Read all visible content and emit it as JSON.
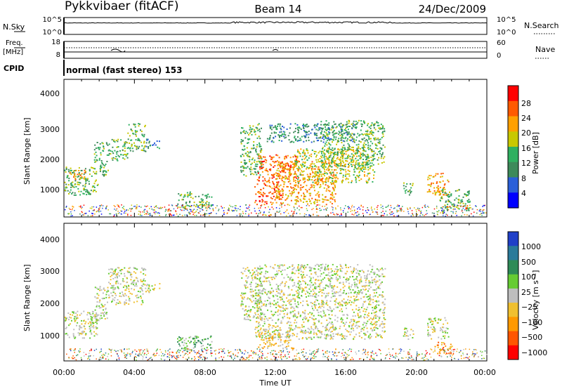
{
  "header": {
    "title": "Pykkvibaer (fitACF)",
    "beam": "Beam 14",
    "date": "24/Dec/2009"
  },
  "strip": {
    "nsky_label": "N.Sky",
    "nsearch_label": "N.Search",
    "nsky_ticks": [
      "10^5",
      "10^0"
    ],
    "nsearch_ticks": [
      "10^5",
      "10^0"
    ],
    "freq_label": "Freq.",
    "freq_unit": "[MHz]",
    "freq_ticks": [
      "18",
      "8"
    ],
    "nave_label": "Nave",
    "nave_ticks": [
      "60",
      "0"
    ],
    "cpid_label": "CPID",
    "cpid_text": "normal (fast stereo) 153"
  },
  "chart_data": [
    {
      "type": "heatmap",
      "name": "power",
      "ylabel": "Slant Range [km]",
      "yticks": [
        "4000",
        "3000",
        "2000",
        "1000"
      ],
      "ylim": [
        180,
        4600
      ],
      "colorbar_label": "Power [dB]",
      "colorbar_ticks": [
        "28",
        "24",
        "20",
        "16",
        "12",
        "8",
        "4"
      ],
      "colors": [
        "#0000ff",
        "#2a5fd8",
        "#3d8a5a",
        "#2fb060",
        "#c8c800",
        "#ffa000",
        "#ff5a00",
        "#ff0000"
      ],
      "blobs": [
        {
          "t0": 0.0,
          "t1": 1.9,
          "r0": 900,
          "r1": 1800,
          "level": 3
        },
        {
          "t0": 0.3,
          "t1": 1.2,
          "r0": 1400,
          "r1": 1700,
          "level": 5
        },
        {
          "t0": 1.7,
          "t1": 2.5,
          "r0": 1500,
          "r1": 2600,
          "level": 3
        },
        {
          "t0": 2.5,
          "t1": 3.6,
          "r0": 2000,
          "r1": 2700,
          "level": 3
        },
        {
          "t0": 3.6,
          "t1": 4.6,
          "r0": 2300,
          "r1": 3200,
          "level": 3
        },
        {
          "t0": 4.6,
          "t1": 5.4,
          "r0": 2400,
          "r1": 2700,
          "level": 2
        },
        {
          "t0": 6.4,
          "t1": 8.4,
          "r0": 500,
          "r1": 1000,
          "level": 3
        },
        {
          "t0": 10.0,
          "t1": 11.2,
          "r0": 1500,
          "r1": 3200,
          "level": 3
        },
        {
          "t0": 10.8,
          "t1": 12.4,
          "r0": 600,
          "r1": 1400,
          "level": 6
        },
        {
          "t0": 11.0,
          "t1": 13.2,
          "r0": 1400,
          "r1": 2200,
          "level": 6
        },
        {
          "t0": 12.0,
          "t1": 15.4,
          "r0": 600,
          "r1": 2000,
          "level": 5
        },
        {
          "t0": 13.0,
          "t1": 17.6,
          "r0": 1300,
          "r1": 2400,
          "level": 4
        },
        {
          "t0": 14.5,
          "t1": 18.2,
          "r0": 1800,
          "r1": 3300,
          "level": 3
        },
        {
          "t0": 11.5,
          "t1": 16.5,
          "r0": 2600,
          "r1": 3200,
          "level": 2
        },
        {
          "t0": 19.2,
          "t1": 19.8,
          "r0": 900,
          "r1": 1300,
          "level": 3
        },
        {
          "t0": 20.6,
          "t1": 21.8,
          "r0": 900,
          "r1": 1600,
          "level": 5
        },
        {
          "t0": 21.3,
          "t1": 23.0,
          "r0": 400,
          "r1": 1100,
          "level": 3
        }
      ]
    },
    {
      "type": "heatmap",
      "name": "velocity",
      "ylabel": "Slant Range [km]",
      "yticks": [
        "4000",
        "3000",
        "2000",
        "1000"
      ],
      "ylim": [
        180,
        4600
      ],
      "xlabel": "Time UT",
      "xticks": [
        "00:00",
        "04:00",
        "08:00",
        "12:00",
        "16:00",
        "20:00",
        "00:00"
      ],
      "xlim": [
        0,
        24
      ],
      "colorbar_label": "Velocity [m s⁻¹]",
      "colorbar_ticks": [
        "1000",
        "500",
        "100",
        "25",
        "−25",
        "−100",
        "−500",
        "−1000"
      ],
      "colors": [
        "#2040c8",
        "#2a7a9a",
        "#2e8b57",
        "#66cc33",
        "#bebebe",
        "#f0c030",
        "#ff9900",
        "#ff5500",
        "#ff0000"
      ],
      "blobs": [
        {
          "t0": 0.0,
          "t1": 1.9,
          "r0": 900,
          "r1": 1800,
          "level": 4
        },
        {
          "t0": 1.7,
          "t1": 2.5,
          "r0": 1500,
          "r1": 2600,
          "level": 4
        },
        {
          "t0": 2.5,
          "t1": 4.6,
          "r0": 2000,
          "r1": 3200,
          "level": 4
        },
        {
          "t0": 4.6,
          "t1": 5.4,
          "r0": 2400,
          "r1": 2700,
          "level": 4
        },
        {
          "t0": 6.4,
          "t1": 8.4,
          "r0": 500,
          "r1": 1000,
          "level": 3
        },
        {
          "t0": 10.0,
          "t1": 11.2,
          "r0": 1500,
          "r1": 3200,
          "level": 4
        },
        {
          "t0": 10.8,
          "t1": 18.2,
          "r0": 900,
          "r1": 3300,
          "level": 4
        },
        {
          "t0": 11.0,
          "t1": 13.0,
          "r0": 600,
          "r1": 1200,
          "level": 5
        },
        {
          "t0": 19.2,
          "t1": 19.8,
          "r0": 900,
          "r1": 1300,
          "level": 4
        },
        {
          "t0": 20.6,
          "t1": 21.8,
          "r0": 900,
          "r1": 1600,
          "level": 4
        },
        {
          "t0": 21.0,
          "t1": 22.0,
          "r0": 400,
          "r1": 800,
          "level": 6
        }
      ]
    }
  ]
}
